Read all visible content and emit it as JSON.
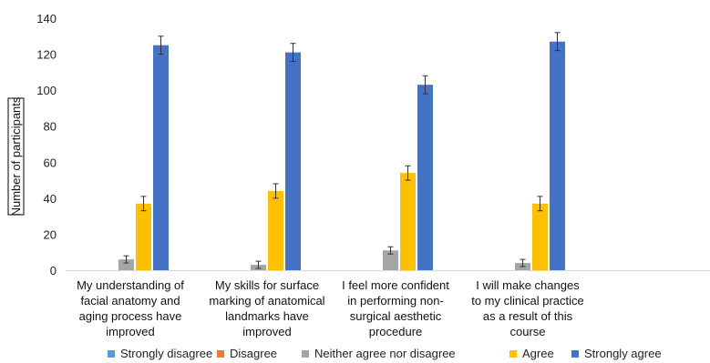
{
  "chart_data": {
    "type": "bar",
    "ylabel": "Number of participants",
    "xlabel": "",
    "ylim": [
      0,
      140
    ],
    "yticks": [
      0,
      20,
      40,
      60,
      80,
      100,
      120,
      140
    ],
    "grid": false,
    "legend_position": "bottom",
    "error_bars": true,
    "categories": [
      [
        "My understanding of",
        "facial anatomy and",
        "aging process have",
        "improved"
      ],
      [
        "My skills for surface",
        "marking of anatomical",
        "landmarks have",
        "improved"
      ],
      [
        "I feel more confident",
        "in performing non-",
        "surgical aesthetic",
        "procedure"
      ],
      [
        "I will make changes",
        "to my clinical practice",
        "as a result of this",
        "course"
      ]
    ],
    "series": [
      {
        "name": "Strongly disagree",
        "color": "#5B9BD5",
        "values": [
          0,
          0,
          0,
          0
        ],
        "errors": [
          0,
          0,
          0,
          0
        ]
      },
      {
        "name": "Disagree",
        "color": "#ED7D31",
        "values": [
          0,
          0,
          0,
          0
        ],
        "errors": [
          0,
          0,
          0,
          0
        ]
      },
      {
        "name": "Neither agree nor disagree",
        "color": "#A5A5A5",
        "values": [
          6,
          3,
          11,
          4
        ],
        "errors": [
          2,
          2,
          2,
          2
        ]
      },
      {
        "name": "Agree",
        "color": "#FFC000",
        "values": [
          37,
          44,
          54,
          37
        ],
        "errors": [
          4,
          4,
          4,
          4
        ]
      },
      {
        "name": "Strongly agree",
        "color": "#4472C4",
        "values": [
          125,
          121,
          103,
          127
        ],
        "errors": [
          5,
          5,
          5,
          5
        ]
      }
    ]
  }
}
